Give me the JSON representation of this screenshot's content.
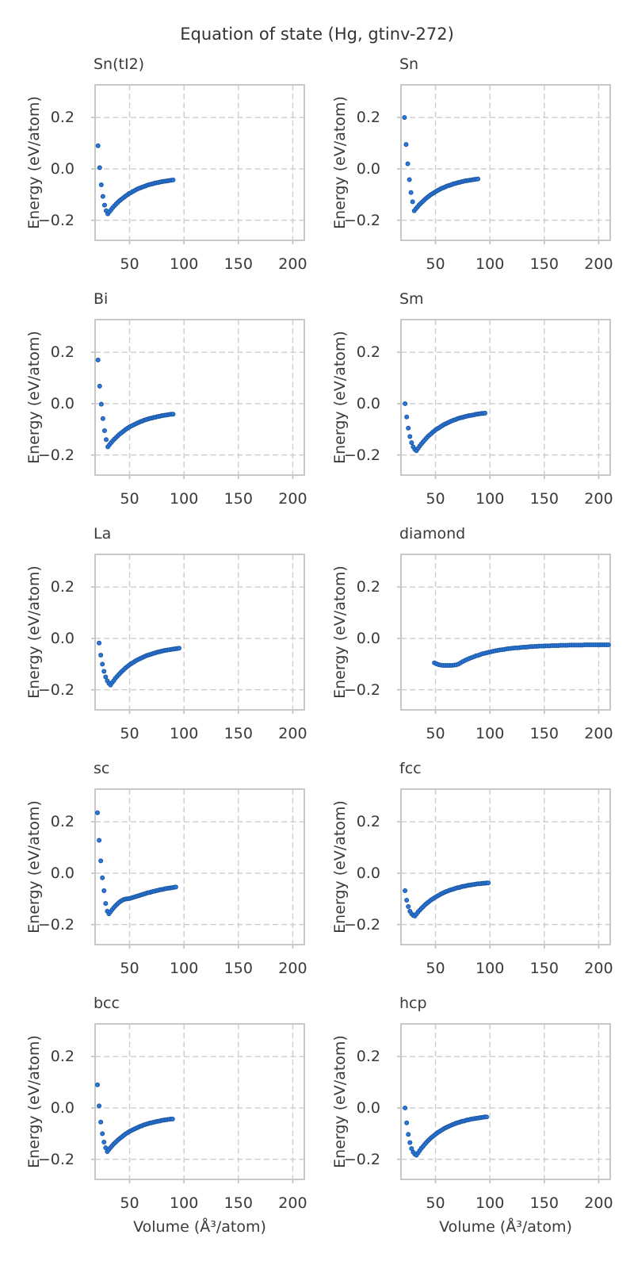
{
  "title": "Equation of state (Hg, gtinv-272)",
  "axes": {
    "xlabel": "Volume (Å³/atom)",
    "ylabel": "Energy (eV/atom)",
    "xlim": [
      18.3,
      210.6
    ],
    "ylim": [
      -0.278,
      0.327
    ],
    "xticks": [
      50,
      100,
      150,
      200
    ],
    "xticklabels": [
      "50",
      "100",
      "150",
      "200"
    ],
    "yticks": [
      0.2,
      0.0,
      -0.2
    ],
    "yticklabels": [
      "0.2",
      "0.0",
      "−0.2"
    ],
    "grid": true,
    "legend": "none"
  },
  "style": {
    "marker_fill": "#2a78dc",
    "marker_edge": "#1a55a0",
    "grid_color": "#cccccc",
    "spine_color": "#c8c8c8",
    "tick_color": "#bfbfbf",
    "text_color": "#3a3a3a"
  },
  "chart_data": [
    {
      "type": "scatter",
      "name": "Sn(tI2)",
      "x": [
        21,
        22.5,
        24,
        25.5,
        27,
        28.5,
        30,
        31.5,
        33,
        34.5,
        36,
        37.5,
        39,
        40.5,
        42,
        43.5,
        45,
        46.5,
        48,
        49.5,
        51,
        52.5,
        54,
        55.5,
        57,
        58.5,
        60,
        61.5,
        63,
        64.5,
        66,
        67.5,
        69,
        70.5,
        72,
        73.5,
        75,
        76.5,
        78,
        79.5,
        81,
        82.5,
        84,
        85.5,
        87,
        88.5,
        90
      ],
      "y": [
        0.09,
        0.005,
        -0.062,
        -0.107,
        -0.141,
        -0.163,
        -0.175,
        -0.167,
        -0.159,
        -0.151,
        -0.144,
        -0.137,
        -0.131,
        -0.125,
        -0.12,
        -0.115,
        -0.11,
        -0.105,
        -0.101,
        -0.096,
        -0.093,
        -0.089,
        -0.086,
        -0.082,
        -0.079,
        -0.076,
        -0.074,
        -0.071,
        -0.069,
        -0.067,
        -0.064,
        -0.062,
        -0.06,
        -0.059,
        -0.057,
        -0.055,
        -0.054,
        -0.053,
        -0.051,
        -0.05,
        -0.049,
        -0.048,
        -0.047,
        -0.046,
        -0.045,
        -0.044,
        -0.043
      ]
    },
    {
      "type": "scatter",
      "name": "Sn",
      "x": [
        21.5,
        23,
        24.5,
        26,
        27.5,
        29,
        30.5,
        32,
        33.5,
        35,
        36.5,
        38,
        39.5,
        41,
        42.5,
        44,
        45.5,
        47,
        48.5,
        50,
        51.5,
        53,
        54.5,
        56,
        57.5,
        59,
        60.5,
        62,
        63.5,
        65,
        66.5,
        68,
        69.5,
        71,
        72.5,
        74,
        75.5,
        77,
        78.5,
        80,
        81.5,
        83,
        84.5,
        86,
        87.5,
        89
      ],
      "y": [
        0.2,
        0.095,
        0.02,
        -0.042,
        -0.092,
        -0.128,
        -0.163,
        -0.155,
        -0.148,
        -0.14,
        -0.134,
        -0.128,
        -0.122,
        -0.116,
        -0.111,
        -0.106,
        -0.101,
        -0.097,
        -0.093,
        -0.089,
        -0.085,
        -0.082,
        -0.078,
        -0.075,
        -0.073,
        -0.07,
        -0.067,
        -0.065,
        -0.063,
        -0.061,
        -0.058,
        -0.057,
        -0.055,
        -0.053,
        -0.052,
        -0.05,
        -0.049,
        -0.047,
        -0.046,
        -0.045,
        -0.044,
        -0.043,
        -0.042,
        -0.041,
        -0.04,
        -0.039
      ]
    },
    {
      "type": "scatter",
      "name": "Bi",
      "x": [
        21,
        22.5,
        24,
        25.5,
        27,
        28.5,
        30,
        31.5,
        33,
        34.5,
        36,
        37.5,
        39,
        40.5,
        42,
        43.5,
        45,
        46.5,
        48,
        49.5,
        51,
        52.5,
        54,
        55.5,
        57,
        58.5,
        60,
        61.5,
        63,
        64.5,
        66,
        67.5,
        69,
        70.5,
        72,
        73.5,
        75,
        76.5,
        78,
        79.5,
        81,
        82.5,
        84,
        85.5,
        87,
        88.5,
        90
      ],
      "y": [
        0.17,
        0.068,
        -0.002,
        -0.058,
        -0.105,
        -0.14,
        -0.168,
        -0.16,
        -0.152,
        -0.145,
        -0.138,
        -0.132,
        -0.126,
        -0.12,
        -0.115,
        -0.11,
        -0.105,
        -0.1,
        -0.096,
        -0.092,
        -0.088,
        -0.085,
        -0.082,
        -0.079,
        -0.076,
        -0.073,
        -0.07,
        -0.068,
        -0.065,
        -0.063,
        -0.061,
        -0.059,
        -0.057,
        -0.056,
        -0.054,
        -0.053,
        -0.051,
        -0.05,
        -0.049,
        -0.047,
        -0.046,
        -0.045,
        -0.044,
        -0.043,
        -0.042,
        -0.041,
        -0.041
      ]
    },
    {
      "type": "scatter",
      "name": "Sm",
      "x": [
        22,
        23.5,
        25,
        26.5,
        28,
        29.5,
        31,
        32.5,
        34,
        35.5,
        37,
        38.5,
        40,
        41.5,
        43,
        44.5,
        46,
        47.5,
        49,
        50.5,
        52,
        53.5,
        55,
        56.5,
        58,
        59.5,
        61,
        62.5,
        64,
        65.5,
        67,
        68.5,
        70,
        71.5,
        73,
        74.5,
        76,
        77.5,
        79,
        80.5,
        82,
        83.5,
        85,
        86.5,
        88,
        89.5,
        91,
        92.5,
        94,
        95.5
      ],
      "y": [
        0.0,
        -0.052,
        -0.095,
        -0.128,
        -0.152,
        -0.168,
        -0.178,
        -0.183,
        -0.174,
        -0.165,
        -0.157,
        -0.149,
        -0.142,
        -0.135,
        -0.128,
        -0.122,
        -0.117,
        -0.111,
        -0.106,
        -0.101,
        -0.097,
        -0.093,
        -0.089,
        -0.085,
        -0.081,
        -0.078,
        -0.075,
        -0.072,
        -0.069,
        -0.066,
        -0.064,
        -0.062,
        -0.059,
        -0.057,
        -0.055,
        -0.054,
        -0.052,
        -0.05,
        -0.049,
        -0.047,
        -0.046,
        -0.045,
        -0.044,
        -0.042,
        -0.041,
        -0.04,
        -0.039,
        -0.038,
        -0.038,
        -0.037
      ]
    },
    {
      "type": "scatter",
      "name": "La",
      "x": [
        22,
        23.5,
        25,
        26.5,
        28,
        29.5,
        31,
        32.5,
        34,
        35.5,
        37,
        38.5,
        40,
        41.5,
        43,
        44.5,
        46,
        47.5,
        49,
        50.5,
        52,
        53.5,
        55,
        56.5,
        58,
        59.5,
        61,
        62.5,
        64,
        65.5,
        67,
        68.5,
        70,
        71.5,
        73,
        74.5,
        76,
        77.5,
        79,
        80.5,
        82,
        83.5,
        85,
        86.5,
        88,
        89.5,
        91,
        92.5,
        94,
        95.5
      ],
      "y": [
        -0.018,
        -0.065,
        -0.1,
        -0.128,
        -0.15,
        -0.165,
        -0.175,
        -0.181,
        -0.172,
        -0.164,
        -0.155,
        -0.148,
        -0.141,
        -0.134,
        -0.128,
        -0.122,
        -0.116,
        -0.111,
        -0.106,
        -0.101,
        -0.097,
        -0.093,
        -0.089,
        -0.085,
        -0.082,
        -0.079,
        -0.076,
        -0.073,
        -0.07,
        -0.067,
        -0.065,
        -0.063,
        -0.061,
        -0.059,
        -0.057,
        -0.055,
        -0.053,
        -0.052,
        -0.05,
        -0.049,
        -0.047,
        -0.046,
        -0.045,
        -0.044,
        -0.043,
        -0.042,
        -0.041,
        -0.04,
        -0.039,
        -0.038
      ]
    },
    {
      "type": "scatter",
      "name": "diamond",
      "x": [
        49,
        51,
        53,
        55,
        57,
        59,
        61,
        63,
        65,
        67,
        69,
        71,
        73,
        75,
        77,
        79,
        81,
        83,
        85,
        87,
        89,
        91,
        93,
        95,
        97,
        99,
        101,
        103,
        105,
        107,
        109,
        111,
        113,
        115,
        117,
        119,
        121,
        123,
        125,
        127,
        129,
        131,
        133,
        135,
        137,
        139,
        141,
        143,
        145,
        147,
        149,
        151,
        153,
        155,
        157,
        159,
        161,
        163,
        165,
        167,
        169,
        171,
        173,
        175,
        177,
        179,
        181,
        183,
        185,
        187,
        189,
        191,
        193,
        195,
        197,
        199,
        201,
        203,
        205,
        207,
        209
      ],
      "y": [
        -0.095,
        -0.099,
        -0.102,
        -0.104,
        -0.105,
        -0.105,
        -0.105,
        -0.105,
        -0.105,
        -0.104,
        -0.103,
        -0.1,
        -0.095,
        -0.09,
        -0.086,
        -0.082,
        -0.078,
        -0.075,
        -0.072,
        -0.068,
        -0.066,
        -0.063,
        -0.06,
        -0.058,
        -0.056,
        -0.054,
        -0.052,
        -0.05,
        -0.048,
        -0.047,
        -0.045,
        -0.044,
        -0.043,
        -0.041,
        -0.04,
        -0.039,
        -0.038,
        -0.037,
        -0.037,
        -0.036,
        -0.035,
        -0.034,
        -0.034,
        -0.033,
        -0.032,
        -0.032,
        -0.031,
        -0.031,
        -0.03,
        -0.03,
        -0.03,
        -0.029,
        -0.029,
        -0.029,
        -0.028,
        -0.028,
        -0.028,
        -0.028,
        -0.027,
        -0.027,
        -0.027,
        -0.027,
        -0.026,
        -0.026,
        -0.026,
        -0.026,
        -0.026,
        -0.026,
        -0.026,
        -0.025,
        -0.025,
        -0.025,
        -0.025,
        -0.025,
        -0.025,
        -0.025,
        -0.025,
        -0.025,
        -0.025,
        -0.025,
        -0.025
      ]
    },
    {
      "type": "scatter",
      "name": "sc",
      "x": [
        20.5,
        22,
        23.5,
        25,
        26.5,
        28,
        29.5,
        31,
        32.5,
        34,
        35.5,
        37,
        38.5,
        40,
        41.5,
        43,
        44.5,
        46,
        47.5,
        49,
        50.5,
        52,
        53.5,
        55,
        56.5,
        58,
        59.5,
        61,
        62.5,
        64,
        65.5,
        67,
        68.5,
        70,
        71.5,
        73,
        74.5,
        76,
        77.5,
        79,
        80.5,
        82,
        83.5,
        85,
        86.5,
        88,
        89.5,
        91,
        92.5
      ],
      "y": [
        0.235,
        0.128,
        0.048,
        -0.018,
        -0.068,
        -0.118,
        -0.148,
        -0.158,
        -0.15,
        -0.142,
        -0.134,
        -0.127,
        -0.121,
        -0.115,
        -0.11,
        -0.106,
        -0.103,
        -0.101,
        -0.1,
        -0.099,
        -0.098,
        -0.096,
        -0.094,
        -0.092,
        -0.09,
        -0.088,
        -0.086,
        -0.084,
        -0.082,
        -0.08,
        -0.078,
        -0.076,
        -0.075,
        -0.073,
        -0.071,
        -0.07,
        -0.068,
        -0.067,
        -0.065,
        -0.064,
        -0.063,
        -0.061,
        -0.06,
        -0.059,
        -0.058,
        -0.057,
        -0.056,
        -0.055,
        -0.054
      ]
    },
    {
      "type": "scatter",
      "name": "fcc",
      "x": [
        22,
        23.5,
        25,
        26.5,
        28,
        29.5,
        31,
        32.5,
        34,
        35.5,
        37,
        38.5,
        40,
        41.5,
        43,
        44.5,
        46,
        47.5,
        49,
        50.5,
        52,
        53.5,
        55,
        56.5,
        58,
        59.5,
        61,
        62.5,
        64,
        65.5,
        67,
        68.5,
        70,
        71.5,
        73,
        74.5,
        76,
        77.5,
        79,
        80.5,
        82,
        83.5,
        85,
        86.5,
        88,
        89.5,
        91,
        92.5,
        94,
        95.5,
        97,
        98.5
      ],
      "y": [
        -0.068,
        -0.105,
        -0.13,
        -0.148,
        -0.158,
        -0.164,
        -0.167,
        -0.159,
        -0.151,
        -0.144,
        -0.137,
        -0.131,
        -0.125,
        -0.119,
        -0.114,
        -0.109,
        -0.104,
        -0.1,
        -0.096,
        -0.092,
        -0.088,
        -0.085,
        -0.081,
        -0.078,
        -0.075,
        -0.072,
        -0.07,
        -0.067,
        -0.065,
        -0.063,
        -0.061,
        -0.059,
        -0.057,
        -0.056,
        -0.054,
        -0.052,
        -0.051,
        -0.05,
        -0.048,
        -0.047,
        -0.046,
        -0.045,
        -0.044,
        -0.043,
        -0.042,
        -0.041,
        -0.041,
        -0.04,
        -0.039,
        -0.039,
        -0.038,
        -0.038
      ]
    },
    {
      "type": "scatter",
      "name": "bcc",
      "x": [
        20.5,
        22,
        23.5,
        25,
        26.5,
        28,
        29.5,
        31,
        32.5,
        34,
        35.5,
        37,
        38.5,
        40,
        41.5,
        43,
        44.5,
        46,
        47.5,
        49,
        50.5,
        52,
        53.5,
        55,
        56.5,
        58,
        59.5,
        61,
        62.5,
        64,
        65.5,
        67,
        68.5,
        70,
        71.5,
        73,
        74.5,
        76,
        77.5,
        79,
        80.5,
        82,
        83.5,
        85,
        86.5,
        88,
        89.5
      ],
      "y": [
        0.09,
        0.008,
        -0.055,
        -0.1,
        -0.133,
        -0.155,
        -0.17,
        -0.162,
        -0.154,
        -0.147,
        -0.14,
        -0.134,
        -0.128,
        -0.122,
        -0.117,
        -0.112,
        -0.107,
        -0.102,
        -0.098,
        -0.094,
        -0.09,
        -0.087,
        -0.084,
        -0.081,
        -0.078,
        -0.075,
        -0.072,
        -0.07,
        -0.067,
        -0.065,
        -0.063,
        -0.061,
        -0.059,
        -0.058,
        -0.056,
        -0.055,
        -0.053,
        -0.052,
        -0.051,
        -0.049,
        -0.048,
        -0.047,
        -0.046,
        -0.045,
        -0.044,
        -0.043,
        -0.043
      ]
    },
    {
      "type": "scatter",
      "name": "hcp",
      "x": [
        22,
        23.5,
        25,
        26.5,
        28,
        29.5,
        31,
        32.5,
        34,
        35.5,
        37,
        38.5,
        40,
        41.5,
        43,
        44.5,
        46,
        47.5,
        49,
        50.5,
        52,
        53.5,
        55,
        56.5,
        58,
        59.5,
        61,
        62.5,
        64,
        65.5,
        67,
        68.5,
        70,
        71.5,
        73,
        74.5,
        76,
        77.5,
        79,
        80.5,
        82,
        83.5,
        85,
        86.5,
        88,
        89.5,
        91,
        92.5,
        94,
        95.5,
        97
      ],
      "y": [
        0.0,
        -0.058,
        -0.103,
        -0.135,
        -0.158,
        -0.172,
        -0.18,
        -0.184,
        -0.175,
        -0.166,
        -0.157,
        -0.15,
        -0.142,
        -0.135,
        -0.128,
        -0.122,
        -0.116,
        -0.111,
        -0.106,
        -0.101,
        -0.096,
        -0.092,
        -0.088,
        -0.084,
        -0.08,
        -0.077,
        -0.074,
        -0.071,
        -0.068,
        -0.065,
        -0.063,
        -0.06,
        -0.058,
        -0.056,
        -0.054,
        -0.052,
        -0.051,
        -0.049,
        -0.047,
        -0.046,
        -0.044,
        -0.043,
        -0.042,
        -0.041,
        -0.04,
        -0.039,
        -0.038,
        -0.037,
        -0.036,
        -0.035,
        -0.035
      ]
    }
  ]
}
